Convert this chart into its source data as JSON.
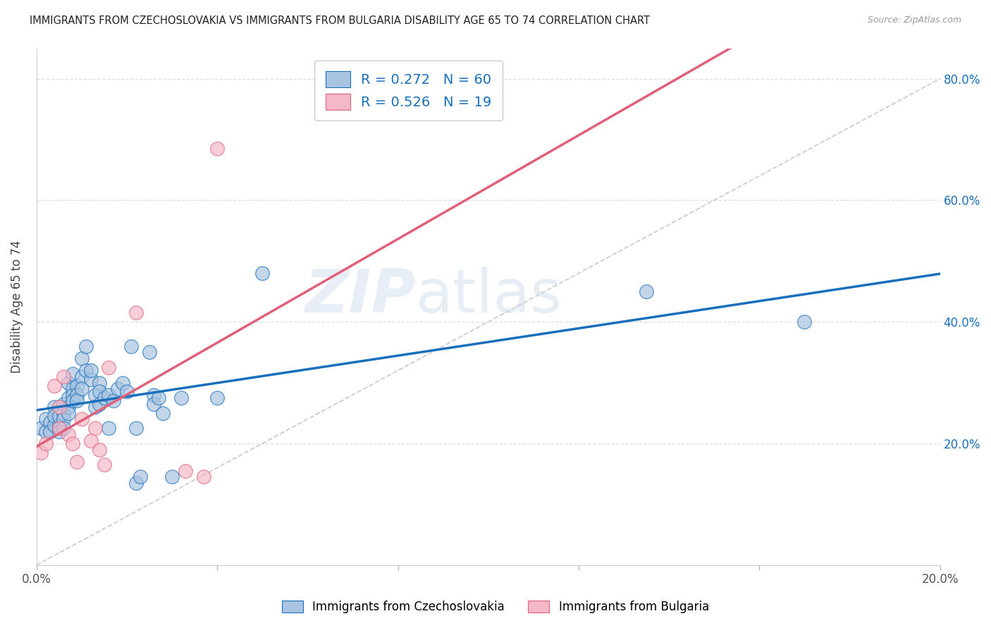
{
  "title": "IMMIGRANTS FROM CZECHOSLOVAKIA VS IMMIGRANTS FROM BULGARIA DISABILITY AGE 65 TO 74 CORRELATION CHART",
  "source": "Source: ZipAtlas.com",
  "ylabel": "Disability Age 65 to 74",
  "xlim": [
    0.0,
    0.2
  ],
  "ylim": [
    0.0,
    0.85
  ],
  "x_ticks": [
    0.0,
    0.04,
    0.08,
    0.12,
    0.16,
    0.2
  ],
  "y_ticks": [
    0.0,
    0.2,
    0.4,
    0.6,
    0.8
  ],
  "R_czech": 0.272,
  "N_czech": 60,
  "R_bulg": 0.526,
  "N_bulg": 19,
  "color_czech": "#a8c4e0",
  "color_bulg": "#f4b8c8",
  "line_color_czech": "#1a6fbd",
  "line_color_bulg": "#e0607a",
  "watermark_zip": "ZIP",
  "watermark_atlas": "atlas",
  "legend_label_czech": "Immigrants from Czechoslovakia",
  "legend_label_bulg": "Immigrants from Bulgaria",
  "czech_x": [
    0.001,
    0.002,
    0.002,
    0.003,
    0.003,
    0.004,
    0.004,
    0.004,
    0.005,
    0.005,
    0.005,
    0.006,
    0.006,
    0.006,
    0.006,
    0.007,
    0.007,
    0.007,
    0.007,
    0.008,
    0.008,
    0.008,
    0.008,
    0.009,
    0.009,
    0.009,
    0.01,
    0.01,
    0.01,
    0.011,
    0.011,
    0.012,
    0.012,
    0.013,
    0.013,
    0.014,
    0.014,
    0.014,
    0.015,
    0.016,
    0.016,
    0.017,
    0.018,
    0.019,
    0.02,
    0.021,
    0.022,
    0.022,
    0.023,
    0.025,
    0.026,
    0.026,
    0.027,
    0.028,
    0.03,
    0.032,
    0.04,
    0.05,
    0.135,
    0.17
  ],
  "czech_y": [
    0.225,
    0.22,
    0.24,
    0.235,
    0.22,
    0.23,
    0.26,
    0.245,
    0.23,
    0.22,
    0.245,
    0.25,
    0.265,
    0.24,
    0.225,
    0.3,
    0.275,
    0.26,
    0.25,
    0.315,
    0.29,
    0.28,
    0.27,
    0.295,
    0.28,
    0.27,
    0.34,
    0.31,
    0.29,
    0.36,
    0.32,
    0.305,
    0.32,
    0.28,
    0.26,
    0.3,
    0.285,
    0.265,
    0.275,
    0.28,
    0.225,
    0.27,
    0.29,
    0.3,
    0.285,
    0.36,
    0.225,
    0.135,
    0.145,
    0.35,
    0.28,
    0.265,
    0.275,
    0.25,
    0.145,
    0.275,
    0.275,
    0.48,
    0.45,
    0.4
  ],
  "bulg_x": [
    0.001,
    0.002,
    0.004,
    0.005,
    0.005,
    0.006,
    0.007,
    0.008,
    0.009,
    0.01,
    0.012,
    0.013,
    0.014,
    0.015,
    0.016,
    0.022,
    0.033,
    0.037,
    0.04
  ],
  "bulg_y": [
    0.185,
    0.2,
    0.295,
    0.26,
    0.225,
    0.31,
    0.215,
    0.2,
    0.17,
    0.24,
    0.205,
    0.225,
    0.19,
    0.165,
    0.325,
    0.415,
    0.155,
    0.145,
    0.685
  ]
}
